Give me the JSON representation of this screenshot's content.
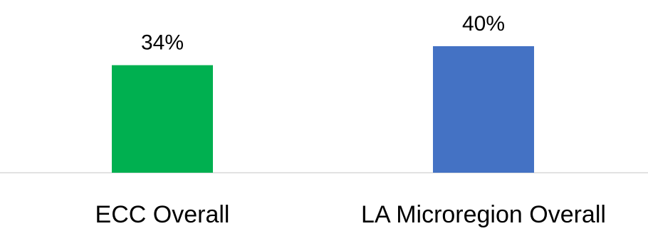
{
  "chart_data": {
    "type": "bar",
    "categories": [
      "ECC Overall",
      "LA Microregion Overall"
    ],
    "values": [
      34,
      40
    ],
    "value_labels": [
      "34%",
      "40%"
    ],
    "colors": [
      "#00B050",
      "#4472C4"
    ],
    "baseline_color": "#D9D9D9",
    "ylim": [
      0,
      45
    ],
    "grid": false,
    "legend": "none"
  }
}
